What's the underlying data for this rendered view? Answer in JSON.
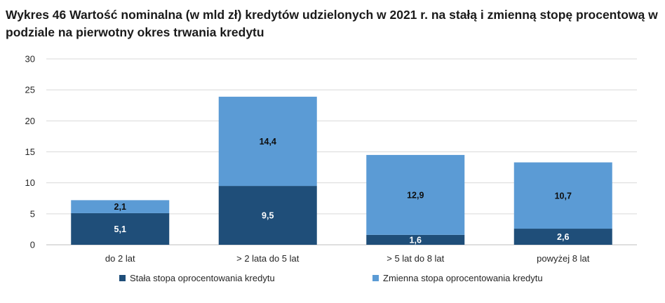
{
  "title": "Wykres 46 Wartość nominalna (w mld zł) kredytów udzielonych w 2021 r. na stałą i zmienną stopę procentową w podziale na pierwotny okres trwania kredytu",
  "colors": {
    "fixed": "#1f4e79",
    "variable": "#5b9bd5",
    "grid": "#d9d9d9",
    "axis": "#bfbfbf"
  },
  "chart_data": {
    "type": "bar",
    "stacked": true,
    "categories": [
      "do 2 lat",
      "> 2 lata do 5 lat",
      "> 5 lat do 8 lat",
      "powyżej 8 lat"
    ],
    "series": [
      {
        "name": "Stała stopa oprocentowania kredytu",
        "values": [
          5.1,
          9.5,
          1.6,
          2.6
        ]
      },
      {
        "name": "Zmienna stopa oprocentowania kredytu",
        "values": [
          2.1,
          14.4,
          12.9,
          10.7
        ]
      }
    ],
    "ylim": [
      0,
      30
    ],
    "yticks": [
      0,
      5,
      10,
      15,
      20,
      25,
      30
    ],
    "grid": true,
    "legend": "bottom"
  }
}
